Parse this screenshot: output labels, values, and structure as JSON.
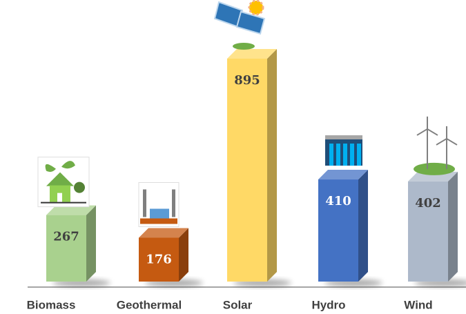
{
  "chart_data": {
    "type": "bar",
    "categories": [
      "Biomass",
      "Geothermal",
      "Solar",
      "Hydro",
      "Wind"
    ],
    "values": [
      267,
      176,
      895,
      410,
      402
    ],
    "colors": [
      "#a9d18e",
      "#c55a11",
      "#ffd966",
      "#4472c4",
      "#adb9ca"
    ]
  }
}
